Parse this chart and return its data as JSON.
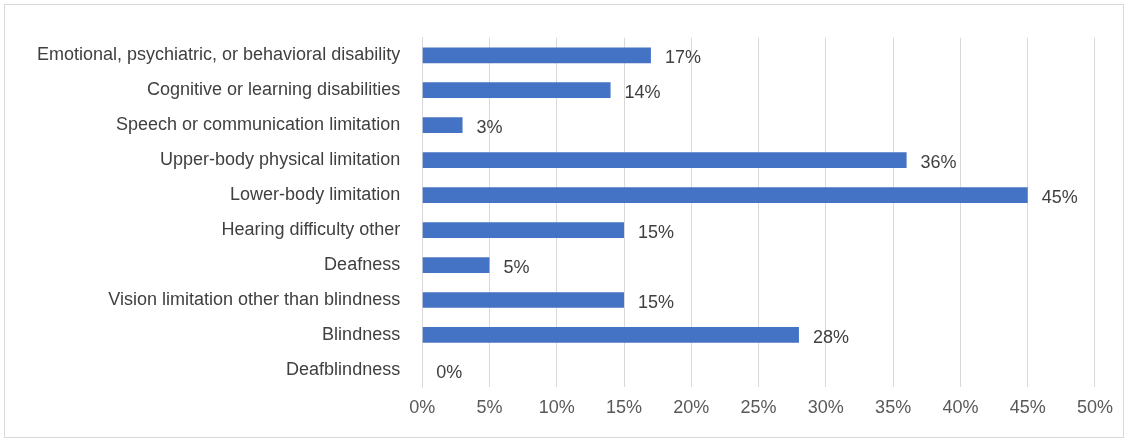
{
  "chart_data": {
    "type": "bar",
    "orientation": "horizontal",
    "categories": [
      "Emotional, psychiatric, or behavioral disability",
      "Cognitive or learning disabilities",
      "Speech or communication limitation",
      "Upper-body physical limitation",
      "Lower-body limitation",
      "Hearing difficulty other",
      "Deafness",
      "Vision limitation other than blindness",
      "Blindness",
      "Deafblindness"
    ],
    "values": [
      17,
      14,
      3,
      36,
      45,
      15,
      5,
      15,
      28,
      0
    ],
    "value_labels": [
      "17%",
      "14%",
      "3%",
      "36%",
      "45%",
      "15%",
      "5%",
      "15%",
      "28%",
      "0%"
    ],
    "color": "#4472c4",
    "xlim": [
      0,
      50
    ],
    "xticks": [
      {
        "value": 0,
        "label": "0%"
      },
      {
        "value": 5,
        "label": "5%"
      },
      {
        "value": 10,
        "label": "10%"
      },
      {
        "value": 15,
        "label": "15%"
      },
      {
        "value": 20,
        "label": "20%"
      },
      {
        "value": 25,
        "label": "25%"
      },
      {
        "value": 30,
        "label": "30%"
      },
      {
        "value": 35,
        "label": "35%"
      },
      {
        "value": 40,
        "label": "40%"
      },
      {
        "value": 45,
        "label": "45%"
      },
      {
        "value": 50,
        "label": "50%"
      }
    ],
    "grid": "x",
    "legend": false
  }
}
